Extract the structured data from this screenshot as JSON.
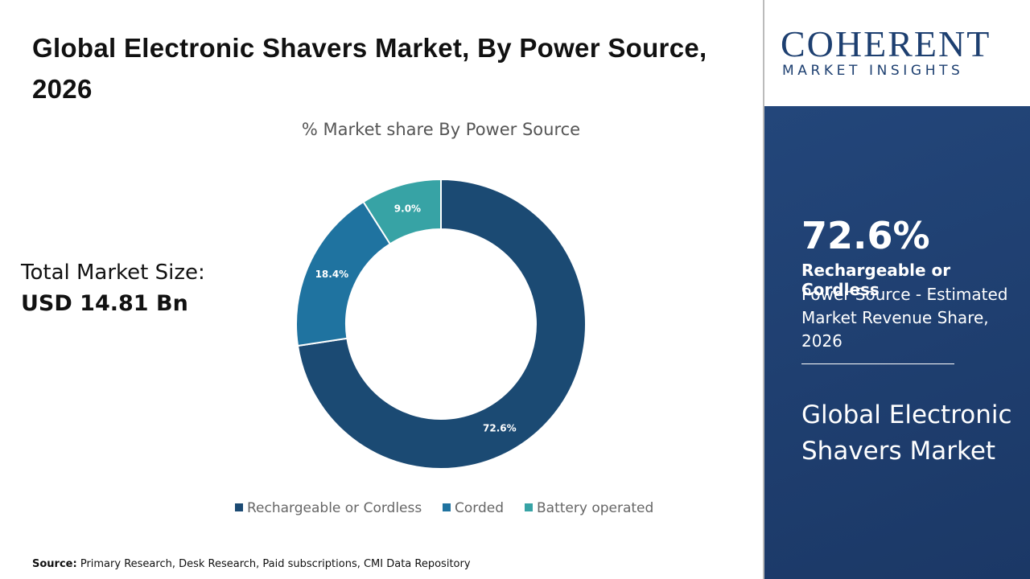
{
  "header": {
    "title": "Global Electronic Shavers Market, By Power Source, 2026"
  },
  "market_size": {
    "label": "Total Market Size:",
    "value": "USD 14.81 Bn"
  },
  "chart_data": {
    "type": "pie",
    "donut": true,
    "title": "% Market share By Power Source",
    "categories": [
      "Rechargeable or Cordless",
      "Corded",
      "Battery operated"
    ],
    "values": [
      72.6,
      18.4,
      9.0
    ],
    "value_labels": [
      "72.6%",
      "18.4%",
      "9.0%"
    ],
    "colors": [
      "#1b4a73",
      "#1f73a0",
      "#37a3a5"
    ],
    "legend": "bottom"
  },
  "source": {
    "label": "Source:",
    "text": "Primary Research, Desk Research, Paid subscriptions, CMI Data Repository"
  },
  "logo": {
    "name": "COHERENT",
    "tagline": "MARKET INSIGHTS"
  },
  "sidebar": {
    "highlight": "72.6%",
    "segment": "Rechargeable or Cordless",
    "description": "Power Source - Estimated Market Revenue Share, 2026",
    "market": "Global Electronic Shavers Market"
  }
}
